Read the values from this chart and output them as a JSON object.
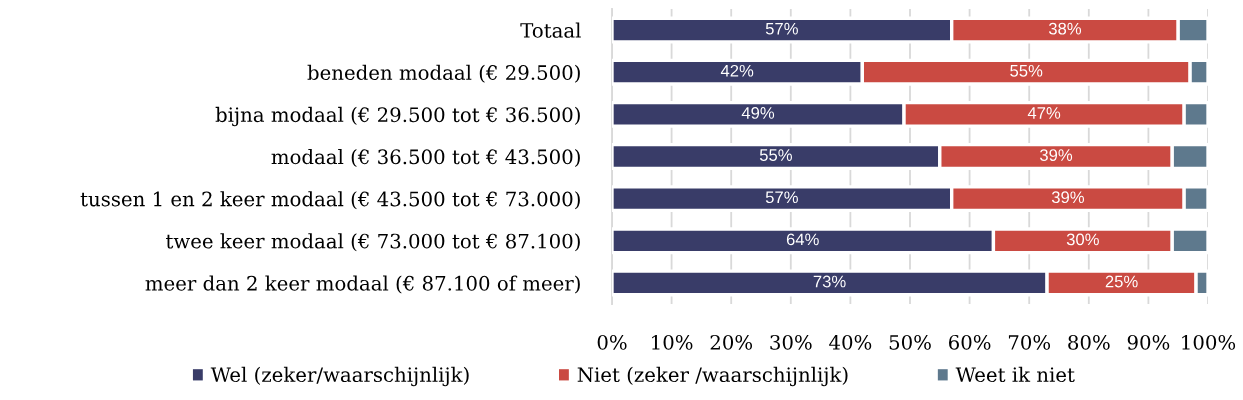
{
  "chart_data": {
    "type": "bar",
    "orientation": "horizontal",
    "stacked": true,
    "categories": [
      "Totaal",
      "beneden modaal (€ 29.500)",
      "bijna modaal (€ 29.500 tot € 36.500)",
      "modaal (€ 36.500 tot € 43.500)",
      "tussen 1 en 2 keer modaal (€ 43.500 tot € 73.000)",
      "twee keer modaal (€ 73.000 tot € 87.100)",
      "meer dan 2 keer modaal (€ 87.100 of meer)"
    ],
    "series": [
      {
        "name": "Wel (zeker/waarschijnlijk)",
        "color": "#393c68",
        "values": [
          57,
          42,
          49,
          55,
          57,
          64,
          73
        ],
        "value_labels": [
          "57%",
          "42%",
          "49%",
          "55%",
          "57%",
          "64%",
          "73%"
        ]
      },
      {
        "name": "Niet (zeker /waarschijnlijk)",
        "color": "#ca4a42",
        "values": [
          38,
          55,
          47,
          39,
          39,
          30,
          25
        ],
        "value_labels": [
          "38%",
          "55%",
          "47%",
          "39%",
          "39%",
          "30%",
          "25%"
        ]
      },
      {
        "name": "Weet ik niet",
        "color": "#5e798d",
        "values": [
          5,
          3,
          4,
          6,
          4,
          6,
          2
        ]
      }
    ],
    "xlim": [
      0,
      100
    ],
    "xticks": [
      {
        "value": 0,
        "label": "0%"
      },
      {
        "value": 10,
        "label": "10%"
      },
      {
        "value": 20,
        "label": "20%"
      },
      {
        "value": 30,
        "label": "30%"
      },
      {
        "value": 40,
        "label": "40%"
      },
      {
        "value": 50,
        "label": "50%"
      },
      {
        "value": 60,
        "label": "60%"
      },
      {
        "value": 70,
        "label": "70%"
      },
      {
        "value": 80,
        "label": "80%"
      },
      {
        "value": 90,
        "label": "90%"
      },
      {
        "value": 100,
        "label": "100%"
      }
    ],
    "grid": "x",
    "legend": "bottom"
  }
}
